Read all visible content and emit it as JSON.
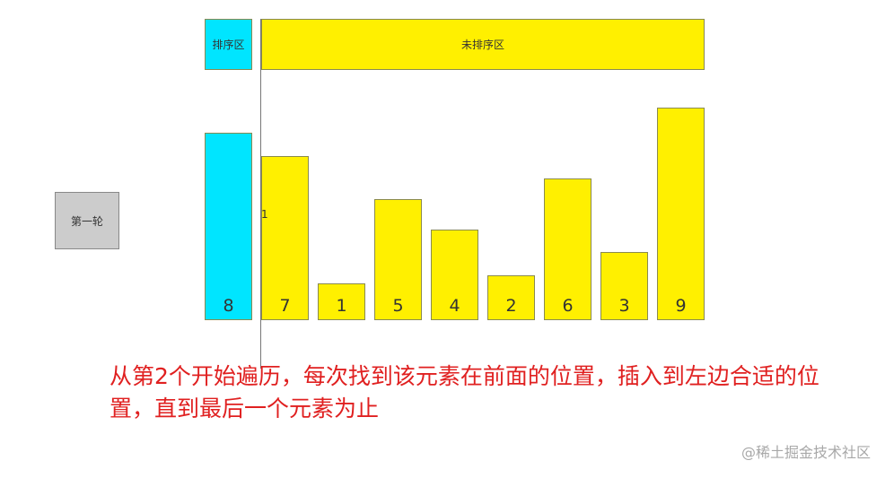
{
  "header": {
    "sorted_label": "排序区",
    "unsorted_label": "未排序区"
  },
  "round_label": "第一轮",
  "pointer_label": "1",
  "colors": {
    "sorted": "#00e5ff",
    "unsorted": "#fff000",
    "caption": "#e02020"
  },
  "bars": [
    {
      "value": "8",
      "sorted": true
    },
    {
      "value": "7",
      "sorted": false
    },
    {
      "value": "1",
      "sorted": false
    },
    {
      "value": "5",
      "sorted": false
    },
    {
      "value": "4",
      "sorted": false
    },
    {
      "value": "2",
      "sorted": false
    },
    {
      "value": "6",
      "sorted": false
    },
    {
      "value": "3",
      "sorted": false
    },
    {
      "value": "9",
      "sorted": false
    }
  ],
  "caption": "从第2个开始遍历，每次找到该元素在前面的位置，插入到左边合适的位置，直到最后一个元素为止",
  "watermark": "@稀土掘金技术社区"
}
